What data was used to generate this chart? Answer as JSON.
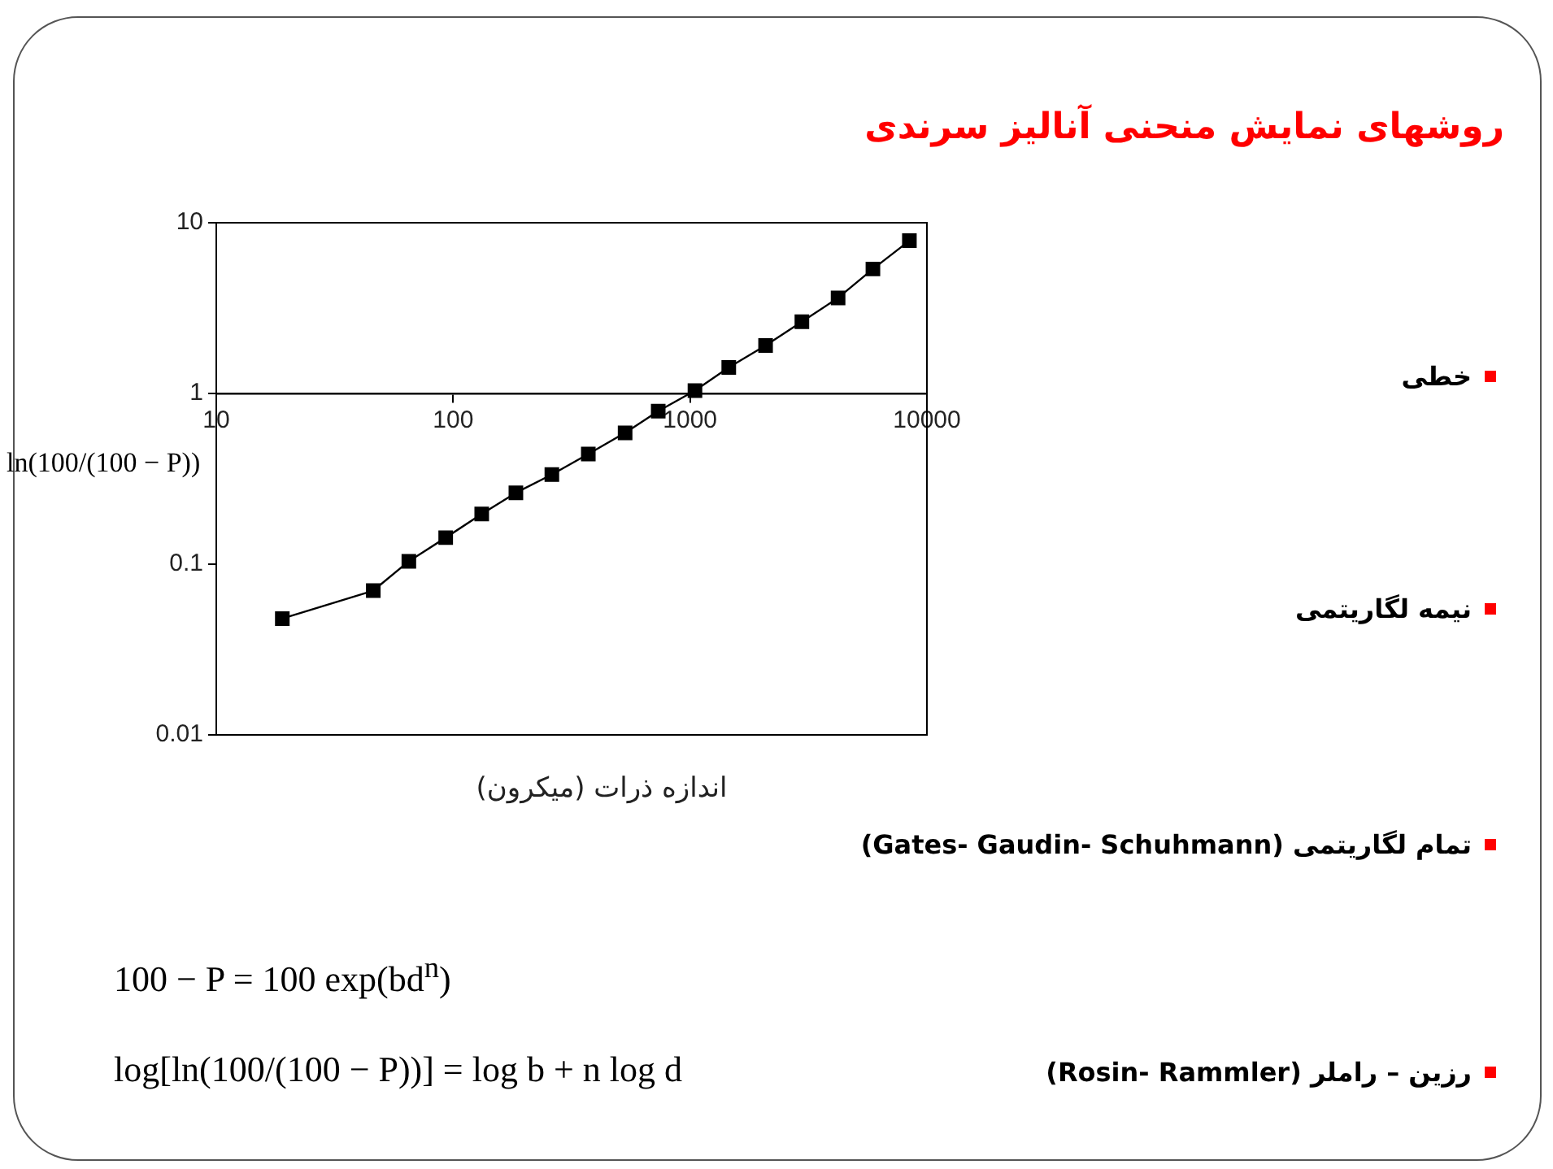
{
  "chart_data": {
    "type": "line",
    "title": "روشهای نمایش منحنی آنالیز سرندی",
    "xlabel": "اندازه ذرات (میکرون)",
    "ylabel": "ln(100/(100 − P))",
    "x": [
      19,
      46,
      65,
      93,
      132,
      184,
      261,
      372,
      532,
      734,
      1049,
      1457,
      2084,
      2966,
      4217,
      5916,
      8433
    ],
    "series": [
      {
        "color": "#000000",
        "values": [
          0.048,
          0.07,
          0.104,
          0.143,
          0.197,
          0.262,
          0.335,
          0.442,
          0.588,
          0.788,
          1.04,
          1.42,
          1.91,
          2.63,
          3.63,
          5.36,
          7.85
        ]
      }
    ],
    "log": "xy",
    "xlim": [
      10,
      10000
    ],
    "ylim": [
      0.01,
      10
    ],
    "xticks": [
      10,
      100,
      1000,
      10000
    ],
    "yticks": [
      0.01,
      0.1,
      1,
      10
    ],
    "marker": "square",
    "line_style": "solid",
    "grid": false,
    "legend": false,
    "annotations": [
      "خطی",
      "نیمه لگاریتمی",
      "تمام لگاریتمی (Gates- Gaudin- Schuhmann)",
      "رزین – راملر (Rosin- Rammler)",
      "100 − P = 100 exp(bd$^{n}$)",
      "log[ln(100/(100 − P))] = log b + n log d"
    ]
  }
}
